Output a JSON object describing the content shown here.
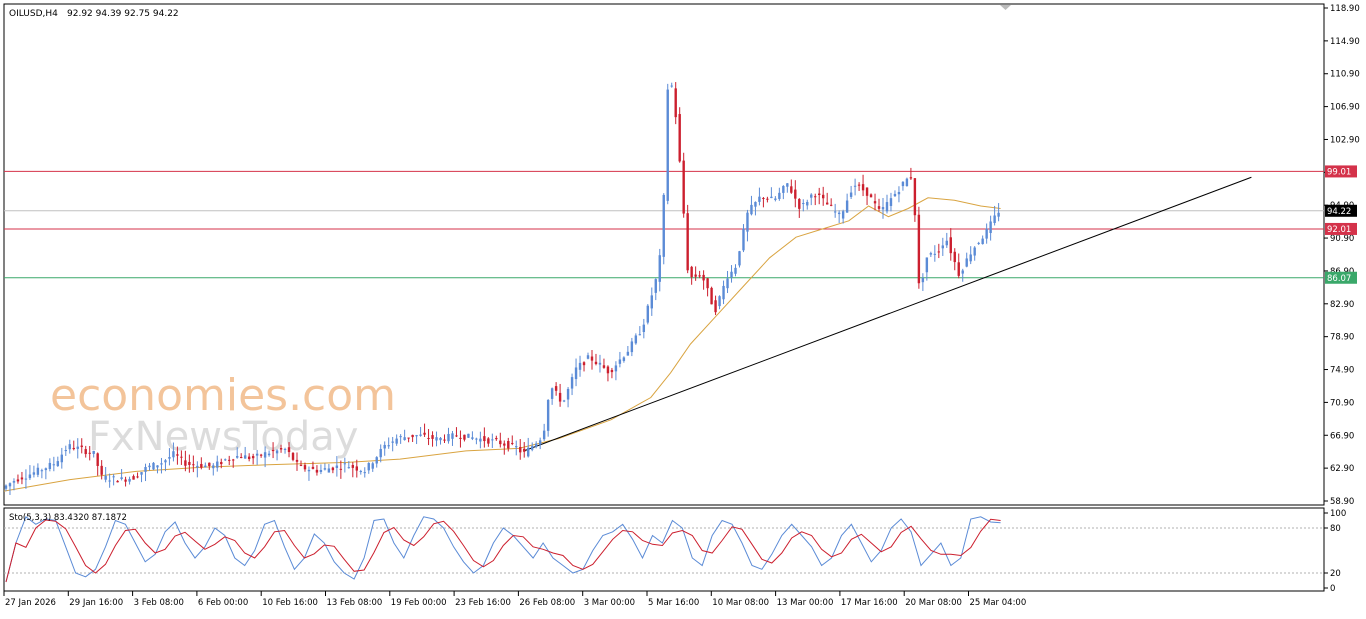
{
  "header": {
    "symbol_timeframe": "OILUSD,H4",
    "ohlc": "92.92 94.39 92.75 94.22"
  },
  "watermark": {
    "line1": "economies.com",
    "line2": "FxNewsToday"
  },
  "chart_data": [
    {
      "type": "candlestick",
      "title": "OILUSD,H4 92.92 94.39 92.75 94.22",
      "ylim": [
        58.9,
        118.9
      ],
      "y_ticks": [
        "118.90",
        "114.90",
        "110.90",
        "106.90",
        "102.90",
        "98.90",
        "94.90",
        "90.90",
        "86.90",
        "82.90",
        "78.90",
        "74.90",
        "70.90",
        "66.90",
        "62.90",
        "58.90"
      ],
      "x_ticks": [
        "27 Jan 2026",
        "29 Jan 16:00",
        "3 Feb 08:00",
        "6 Feb 00:00",
        "10 Feb 16:00",
        "13 Feb 08:00",
        "19 Feb 00:00",
        "23 Feb 16:00",
        "26 Feb 08:00",
        "3 Mar 00:00",
        "5 Mar 16:00",
        "10 Mar 08:00",
        "13 Mar 00:00",
        "17 Mar 16:00",
        "20 Mar 08:00",
        "25 Mar 04:00"
      ],
      "price_levels": [
        {
          "label": "99.01",
          "value": 99.01,
          "color": "#d4324a"
        },
        {
          "label": "94.22",
          "value": 94.22,
          "color": "#000000"
        },
        {
          "label": "92.01",
          "value": 92.01,
          "color": "#d4324a"
        },
        {
          "label": "86.07",
          "value": 86.07,
          "color": "#3aa86a"
        }
      ],
      "trendline": {
        "from": [
          0.394,
          65.0
        ],
        "to": [
          0.945,
          98.3
        ],
        "color": "#000000"
      },
      "ma_color": "#d9a441",
      "bull_color": "#5b8bd6",
      "bear_color": "#cc1f2e",
      "path": [
        [
          0,
          60.4
        ],
        [
          0.01,
          61.5
        ],
        [
          0.025,
          62.4
        ],
        [
          0.04,
          63.5
        ],
        [
          0.05,
          65.6
        ],
        [
          0.06,
          65.2
        ],
        [
          0.07,
          64.6
        ],
        [
          0.075,
          61.8
        ],
        [
          0.09,
          61.5
        ],
        [
          0.1,
          61.8
        ],
        [
          0.11,
          63.0
        ],
        [
          0.12,
          63.5
        ],
        [
          0.13,
          64.6
        ],
        [
          0.14,
          63.4
        ],
        [
          0.16,
          63.1
        ],
        [
          0.17,
          64.0
        ],
        [
          0.18,
          64.4
        ],
        [
          0.19,
          64.1
        ],
        [
          0.2,
          64.7
        ],
        [
          0.215,
          65.2
        ],
        [
          0.225,
          63.0
        ],
        [
          0.24,
          62.6
        ],
        [
          0.26,
          63.3
        ],
        [
          0.275,
          62.6
        ],
        [
          0.29,
          65.6
        ],
        [
          0.3,
          66.6
        ],
        [
          0.315,
          66.9
        ],
        [
          0.33,
          66.4
        ],
        [
          0.345,
          66.9
        ],
        [
          0.36,
          66.5
        ],
        [
          0.375,
          66.1
        ],
        [
          0.39,
          65.4
        ],
        [
          0.395,
          64.6
        ],
        [
          0.41,
          66.9
        ],
        [
          0.415,
          73.0
        ],
        [
          0.425,
          70.8
        ],
        [
          0.435,
          75.0
        ],
        [
          0.445,
          76.4
        ],
        [
          0.46,
          74.6
        ],
        [
          0.475,
          77.4
        ],
        [
          0.485,
          80.0
        ],
        [
          0.495,
          85.5
        ],
        [
          0.5,
          90.0
        ],
        [
          0.505,
          112.0
        ],
        [
          0.51,
          106.5
        ],
        [
          0.515,
          97.0
        ],
        [
          0.52,
          86.0
        ],
        [
          0.53,
          86.5
        ],
        [
          0.54,
          82.0
        ],
        [
          0.55,
          86.5
        ],
        [
          0.555,
          87.0
        ],
        [
          0.565,
          94.0
        ],
        [
          0.575,
          96.0
        ],
        [
          0.585,
          95.5
        ],
        [
          0.595,
          97.5
        ],
        [
          0.605,
          94.5
        ],
        [
          0.615,
          96.5
        ],
        [
          0.625,
          95.0
        ],
        [
          0.635,
          93.5
        ],
        [
          0.645,
          97.5
        ],
        [
          0.655,
          96.5
        ],
        [
          0.665,
          94.0
        ],
        [
          0.675,
          96.0
        ],
        [
          0.685,
          98.0
        ],
        [
          0.69,
          98.5
        ],
        [
          0.695,
          84.0
        ],
        [
          0.7,
          88.5
        ],
        [
          0.71,
          89.5
        ],
        [
          0.715,
          91.0
        ],
        [
          0.725,
          86.5
        ],
        [
          0.735,
          89.5
        ],
        [
          0.745,
          91.5
        ],
        [
          0.755,
          94.2
        ]
      ],
      "ma_path": [
        [
          0,
          60.1
        ],
        [
          0.05,
          61.5
        ],
        [
          0.1,
          62.5
        ],
        [
          0.15,
          63.0
        ],
        [
          0.2,
          63.3
        ],
        [
          0.26,
          63.6
        ],
        [
          0.3,
          64.0
        ],
        [
          0.35,
          65.0
        ],
        [
          0.39,
          65.3
        ],
        [
          0.42,
          66.5
        ],
        [
          0.46,
          68.8
        ],
        [
          0.49,
          71.5
        ],
        [
          0.505,
          74.5
        ],
        [
          0.52,
          78.0
        ],
        [
          0.54,
          81.5
        ],
        [
          0.56,
          85.0
        ],
        [
          0.58,
          88.5
        ],
        [
          0.6,
          91.0
        ],
        [
          0.62,
          92.0
        ],
        [
          0.64,
          93.0
        ],
        [
          0.655,
          94.8
        ],
        [
          0.67,
          93.5
        ],
        [
          0.685,
          94.5
        ],
        [
          0.7,
          95.8
        ],
        [
          0.72,
          95.5
        ],
        [
          0.74,
          94.8
        ],
        [
          0.755,
          94.5
        ]
      ]
    },
    {
      "type": "line",
      "title": "Sto(5,3,3) 83.4320 87.1872",
      "ylim": [
        0,
        100
      ],
      "y_ticks": [
        "100",
        "80",
        "20",
        "0"
      ],
      "levels": [
        80,
        20
      ],
      "series": [
        {
          "name": "main",
          "color": "#5b8bd6"
        },
        {
          "name": "signal",
          "color": "#cc1f2e"
        }
      ],
      "values": [
        8,
        60,
        95,
        85,
        92,
        90,
        55,
        20,
        15,
        25,
        55,
        90,
        85,
        60,
        35,
        45,
        75,
        88,
        60,
        40,
        55,
        80,
        70,
        40,
        30,
        50,
        85,
        90,
        55,
        25,
        40,
        72,
        60,
        35,
        20,
        12,
        40,
        90,
        92,
        60,
        40,
        70,
        95,
        92,
        80,
        55,
        35,
        20,
        30,
        60,
        80,
        70,
        55,
        40,
        60,
        40,
        30,
        20,
        25,
        50,
        70,
        75,
        85,
        65,
        40,
        70,
        60,
        90,
        80,
        40,
        30,
        70,
        90,
        85,
        60,
        30,
        25,
        45,
        70,
        85,
        70,
        55,
        30,
        40,
        70,
        85,
        60,
        35,
        50,
        80,
        92,
        75,
        30,
        45,
        60,
        30,
        40,
        92,
        95,
        88,
        87
      ]
    }
  ]
}
